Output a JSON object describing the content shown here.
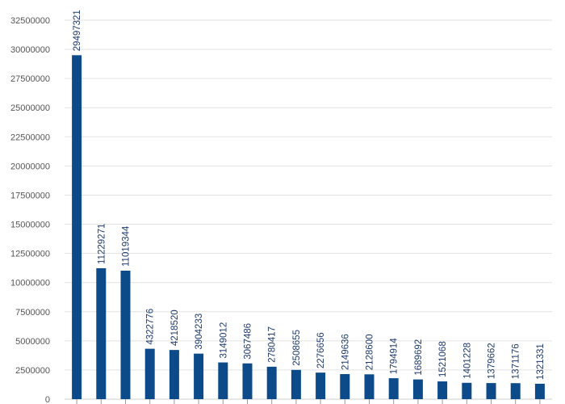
{
  "chart_data": {
    "type": "bar",
    "title": "",
    "xlabel": "",
    "ylabel": "",
    "ylim": [
      0,
      32500000
    ],
    "yticks": [
      0,
      2500000,
      5000000,
      7500000,
      10000000,
      12500000,
      15000000,
      17500000,
      20000000,
      22500000,
      25000000,
      27500000,
      30000000,
      32500000
    ],
    "grid": true,
    "legend": "none",
    "bar_color": "#0d4a8a",
    "series": [
      {
        "values": [
          29497321,
          11229271,
          11019344,
          4322776,
          4218520,
          3904233,
          3149012,
          3067486,
          2780417,
          2508655,
          2276656,
          2149636,
          2128600,
          1794914,
          1689692,
          1521068,
          1401228,
          1379662,
          1371176,
          1321331
        ]
      }
    ]
  }
}
